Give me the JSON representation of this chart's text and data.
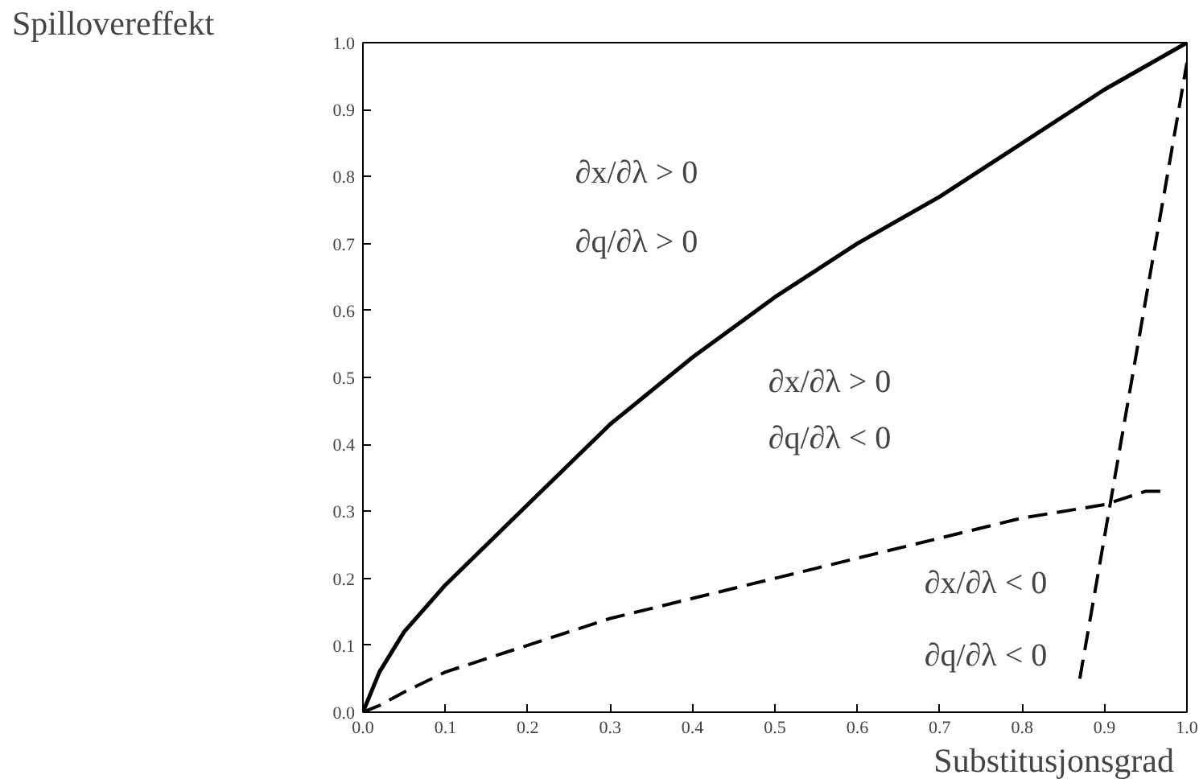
{
  "chart_data": {
    "type": "line",
    "xlabel": "Substitusjonsgrad",
    "ylabel": "Spillovereffekt",
    "xlim": [
      0,
      1
    ],
    "ylim": [
      0,
      1
    ],
    "xticks": [
      {
        "value": 0,
        "label": "0.0"
      },
      0.1,
      0.2,
      0.3,
      0.4,
      0.5,
      0.6,
      0.7,
      0.8,
      0.9,
      {
        "value": 1,
        "label": "1.0"
      }
    ],
    "yticks": [
      {
        "value": 0,
        "label": "0.0"
      },
      0.1,
      0.2,
      0.3,
      0.4,
      0.5,
      0.6,
      0.7,
      0.8,
      0.9,
      {
        "value": 1,
        "label": "1.0"
      }
    ],
    "grid": false,
    "marker": "none",
    "series": [
      {
        "color": "#000000",
        "line_style": "solid",
        "x": [
          0,
          0.02,
          0.05,
          0.1,
          0.2,
          0.3,
          0.4,
          0.5,
          0.6,
          0.7,
          0.8,
          0.9,
          1.0
        ],
        "values": [
          0,
          0.06,
          0.12,
          0.19,
          0.31,
          0.43,
          0.53,
          0.62,
          0.7,
          0.77,
          0.85,
          0.93,
          1.0
        ]
      },
      {
        "color": "#000000",
        "line_style": "dashed",
        "x": [
          0,
          0.02,
          0.05,
          0.1,
          0.2,
          0.3,
          0.4,
          0.5,
          0.6,
          0.7,
          0.8,
          0.9,
          0.95,
          0.97
        ],
        "values": [
          0,
          0.01,
          0.03,
          0.06,
          0.1,
          0.14,
          0.17,
          0.2,
          0.23,
          0.26,
          0.29,
          0.31,
          0.33,
          0.33
        ]
      },
      {
        "color": "#000000",
        "line_style": "dashed",
        "x": [
          0.87,
          1.0
        ],
        "values": [
          0.05,
          0.97
        ]
      }
    ],
    "annotations": [
      "∂x/∂λ > 0",
      "∂q/∂λ > 0",
      "∂x/∂λ > 0",
      "∂q/∂λ < 0",
      "∂x/∂λ < 0",
      "∂q/∂λ < 0"
    ]
  }
}
